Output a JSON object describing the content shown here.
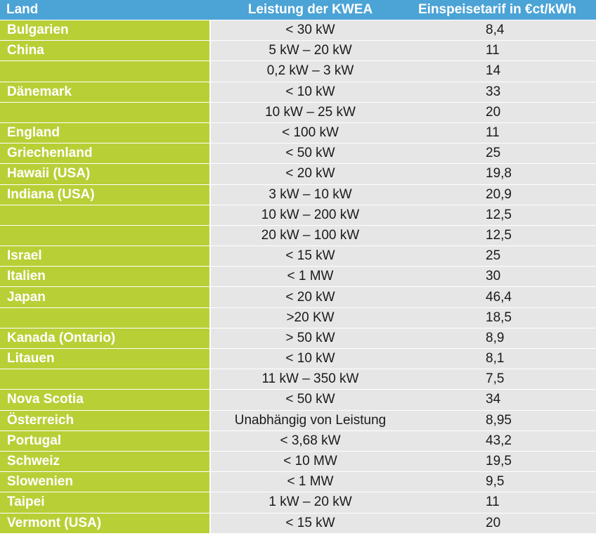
{
  "table": {
    "headers": [
      "Land",
      "Leistung der KWEA",
      "Einspeisetarif in €ct/kWh"
    ],
    "rows": [
      [
        "Bulgarien",
        "< 30 kW",
        "8,4"
      ],
      [
        "China",
        "5 kW – 20 kW",
        "11"
      ],
      [
        "",
        "0,2 kW – 3 kW",
        "14"
      ],
      [
        "Dänemark",
        "< 10 kW",
        "33"
      ],
      [
        "",
        "10 kW – 25 kW",
        "20"
      ],
      [
        "England",
        "< 100 kW",
        "11"
      ],
      [
        "Griechenland",
        "< 50 kW",
        "25"
      ],
      [
        "Hawaii (USA)",
        "< 20 kW",
        "19,8"
      ],
      [
        "Indiana (USA)",
        "3 kW – 10 kW",
        "20,9"
      ],
      [
        "",
        "10 kW – 200 kW",
        "12,5"
      ],
      [
        "",
        "20 kW – 100 kW",
        "12,5"
      ],
      [
        "Israel",
        "< 15 kW",
        "25"
      ],
      [
        "Italien",
        "< 1 MW",
        "30"
      ],
      [
        "Japan",
        "< 20 kW",
        "46,4"
      ],
      [
        "",
        ">20 KW",
        "18,5"
      ],
      [
        "Kanada (Ontario)",
        "> 50 kW",
        "8,9"
      ],
      [
        "Litauen",
        "< 10 kW",
        "8,1"
      ],
      [
        "",
        "11 kW – 350 kW",
        "7,5"
      ],
      [
        "Nova Scotia",
        "< 50 kW",
        "34"
      ],
      [
        "Österreich",
        "Unabhängig von Leistung",
        "8,95"
      ],
      [
        "Portugal",
        "< 3,68 kW",
        "43,2"
      ],
      [
        "Schweiz",
        "< 10 MW",
        "19,5"
      ],
      [
        "Slowenien",
        "< 1 MW",
        "9,5"
      ],
      [
        "Taipei",
        "1 kW – 20 kW",
        "11"
      ],
      [
        "Vermont (USA)",
        "< 15 kW",
        "20"
      ]
    ]
  },
  "colors": {
    "header_bg": "#4ba3d6",
    "land_bg": "#b9cf36",
    "cell_bg": "#e6e6e6"
  }
}
